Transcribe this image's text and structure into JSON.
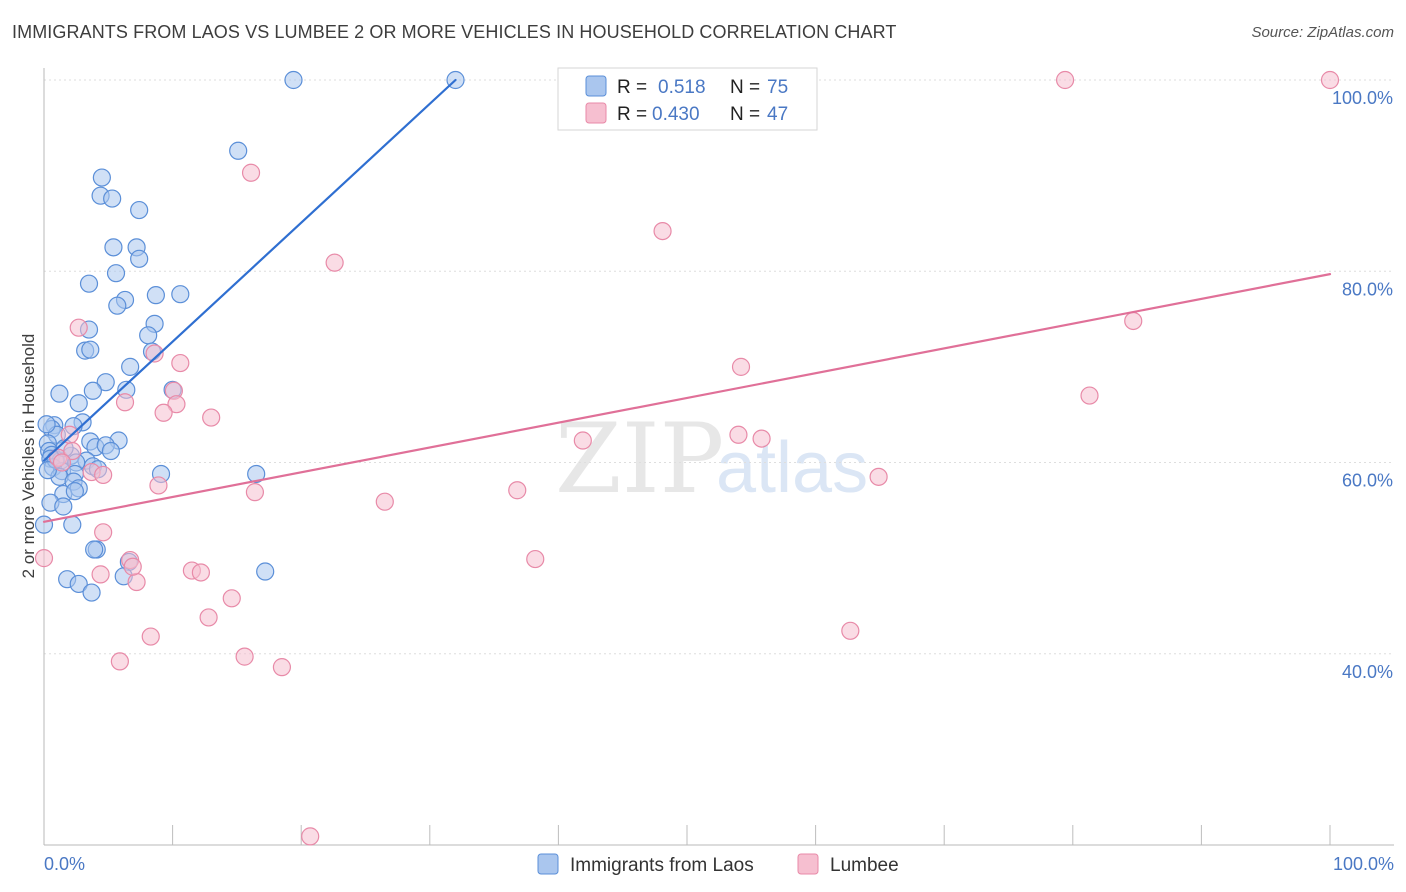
{
  "header": {
    "title": "IMMIGRANTS FROM LAOS VS LUMBEE 2 OR MORE VEHICLES IN HOUSEHOLD CORRELATION CHART",
    "source": "Source: ZipAtlas.com"
  },
  "watermark": {
    "zip": "ZIP",
    "atlas": "atlas"
  },
  "colors": {
    "laos_fill": "#aac6ee",
    "laos_stroke": "#5b8fd8",
    "laos_line": "#2f6fd1",
    "lumbee_fill": "#f6bfd0",
    "lumbee_stroke": "#e88aa8",
    "lumbee_line": "#e07098"
  },
  "legend": {
    "series1": {
      "r_label": "R =",
      "r_value": "0.518",
      "n_label": "N =",
      "n_value": "75"
    },
    "series2": {
      "r_label": "R =",
      "r_value": "0.430",
      "n_label": "N =",
      "n_value": "47"
    }
  },
  "bottom_legend": [
    "Immigrants from Laos",
    "Lumbee"
  ],
  "chart_data": {
    "type": "scatter",
    "title": "IMMIGRANTS FROM LAOS VS LUMBEE 2 OR MORE VEHICLES IN HOUSEHOLD CORRELATION CHART",
    "xlabel": "",
    "ylabel": "2 or more Vehicles in Household",
    "xlim": [
      0,
      100
    ],
    "ylim": [
      20,
      100
    ],
    "x_tick_labels": [
      "0.0%",
      "100.0%"
    ],
    "y_ticks": [
      40,
      60,
      80,
      100
    ],
    "y_tick_labels": [
      "40.0%",
      "60.0%",
      "80.0%",
      "100.0%"
    ],
    "grid": true,
    "series": [
      {
        "name": "Immigrants from Laos",
        "r": 0.518,
        "n": 75,
        "trend": [
          [
            0.0,
            60.2
          ],
          [
            32.0,
            100.0
          ]
        ],
        "points": [
          [
            19.4,
            100
          ],
          [
            32.0,
            100
          ],
          [
            15.1,
            92.6
          ],
          [
            4.5,
            89.8
          ],
          [
            4.4,
            87.9
          ],
          [
            5.3,
            87.6
          ],
          [
            7.4,
            86.4
          ],
          [
            5.4,
            82.5
          ],
          [
            7.2,
            82.5
          ],
          [
            7.4,
            81.3
          ],
          [
            5.6,
            79.8
          ],
          [
            3.5,
            78.7
          ],
          [
            10.6,
            77.6
          ],
          [
            8.7,
            77.5
          ],
          [
            6.3,
            77.0
          ],
          [
            5.7,
            76.4
          ],
          [
            8.6,
            74.5
          ],
          [
            8.1,
            73.3
          ],
          [
            3.5,
            73.9
          ],
          [
            3.2,
            71.7
          ],
          [
            3.6,
            71.8
          ],
          [
            8.4,
            71.6
          ],
          [
            6.7,
            70.0
          ],
          [
            4.8,
            68.4
          ],
          [
            1.2,
            67.2
          ],
          [
            3.8,
            67.5
          ],
          [
            10.0,
            67.6
          ],
          [
            6.4,
            67.6
          ],
          [
            2.7,
            66.2
          ],
          [
            3.0,
            64.2
          ],
          [
            0.8,
            63.9
          ],
          [
            0.6,
            63.5
          ],
          [
            2.3,
            63.8
          ],
          [
            1.0,
            62.9
          ],
          [
            3.6,
            62.2
          ],
          [
            5.8,
            62.3
          ],
          [
            4.0,
            61.6
          ],
          [
            0.3,
            62.0
          ],
          [
            4.8,
            61.8
          ],
          [
            0.4,
            61.2
          ],
          [
            5.2,
            61.2
          ],
          [
            0.6,
            60.8
          ],
          [
            2.1,
            60.7
          ],
          [
            0.5,
            60.4
          ],
          [
            1.3,
            60.2
          ],
          [
            3.3,
            60.2
          ],
          [
            2.5,
            60.0
          ],
          [
            3.8,
            59.6
          ],
          [
            0.7,
            59.5
          ],
          [
            4.2,
            59.3
          ],
          [
            1.4,
            59.1
          ],
          [
            2.4,
            58.8
          ],
          [
            1.2,
            58.5
          ],
          [
            2.3,
            58.0
          ],
          [
            9.1,
            58.8
          ],
          [
            16.5,
            58.8
          ],
          [
            2.7,
            57.3
          ],
          [
            1.5,
            56.7
          ],
          [
            2.4,
            57.0
          ],
          [
            0.5,
            55.8
          ],
          [
            1.5,
            55.4
          ],
          [
            0.0,
            53.5
          ],
          [
            2.2,
            53.5
          ],
          [
            4.1,
            50.9
          ],
          [
            3.9,
            50.9
          ],
          [
            6.6,
            49.6
          ],
          [
            17.2,
            48.6
          ],
          [
            6.2,
            48.1
          ],
          [
            1.8,
            47.8
          ],
          [
            2.7,
            47.3
          ],
          [
            3.7,
            46.4
          ],
          [
            0.2,
            64.0
          ],
          [
            0.9,
            60.3
          ],
          [
            1.6,
            61.5
          ],
          [
            0.3,
            59.2
          ]
        ]
      },
      {
        "name": "Lumbee",
        "r": 0.43,
        "n": 47,
        "trend": [
          [
            0.0,
            53.8
          ],
          [
            100.0,
            79.7
          ]
        ],
        "points": [
          [
            79.4,
            100
          ],
          [
            100.0,
            100
          ],
          [
            16.1,
            90.3
          ],
          [
            48.1,
            84.2
          ],
          [
            22.6,
            80.9
          ],
          [
            84.7,
            74.8
          ],
          [
            2.7,
            74.1
          ],
          [
            8.6,
            71.4
          ],
          [
            10.6,
            70.4
          ],
          [
            54.2,
            70.0
          ],
          [
            10.1,
            67.5
          ],
          [
            81.3,
            67.0
          ],
          [
            6.3,
            66.3
          ],
          [
            10.3,
            66.1
          ],
          [
            9.3,
            65.2
          ],
          [
            13.0,
            64.7
          ],
          [
            54.0,
            62.9
          ],
          [
            55.8,
            62.5
          ],
          [
            41.9,
            62.3
          ],
          [
            2.0,
            62.9
          ],
          [
            1.1,
            60.5
          ],
          [
            3.7,
            59.0
          ],
          [
            64.9,
            58.5
          ],
          [
            8.9,
            57.6
          ],
          [
            16.4,
            56.9
          ],
          [
            36.8,
            57.1
          ],
          [
            26.5,
            55.9
          ],
          [
            4.6,
            52.7
          ],
          [
            0.0,
            50.0
          ],
          [
            6.7,
            49.8
          ],
          [
            38.2,
            49.9
          ],
          [
            11.5,
            48.7
          ],
          [
            12.2,
            48.5
          ],
          [
            4.4,
            48.3
          ],
          [
            7.2,
            47.5
          ],
          [
            14.6,
            45.8
          ],
          [
            12.8,
            43.8
          ],
          [
            62.7,
            42.4
          ],
          [
            8.3,
            41.8
          ],
          [
            15.6,
            39.7
          ],
          [
            5.9,
            39.2
          ],
          [
            18.5,
            38.6
          ],
          [
            20.7,
            20.9
          ],
          [
            6.9,
            49.1
          ],
          [
            2.2,
            61.2
          ],
          [
            4.6,
            58.7
          ],
          [
            1.4,
            60.0
          ]
        ]
      }
    ]
  }
}
